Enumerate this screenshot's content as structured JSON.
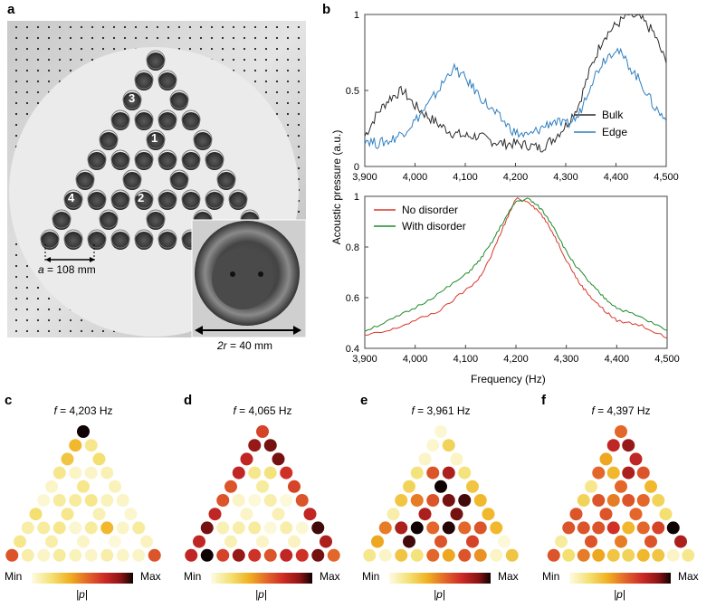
{
  "panels": {
    "a": "a",
    "b": "b",
    "c": "c",
    "d": "d",
    "e": "e",
    "f": "f"
  },
  "photo": {
    "site_labels": [
      "1",
      "2",
      "3",
      "4"
    ],
    "lattice_label_var": "a",
    "lattice_label_val": " = 108 mm",
    "radius_label_var": "2r",
    "radius_label_val": " = 40 mm"
  },
  "shared_ylabel": "Acoustic pressure (a.u.)",
  "shared_xlabel": "Frequency (Hz)",
  "chart_data": [
    {
      "type": "line",
      "xlim": [
        3900,
        4500
      ],
      "ylim": [
        0,
        1
      ],
      "xticks": [
        "3,900",
        "4,000",
        "4,100",
        "4,200",
        "4,300",
        "4,400",
        "4,500"
      ],
      "xtick_values": [
        3900,
        4000,
        4100,
        4200,
        4300,
        4400,
        4500
      ],
      "yticks": [
        "0",
        "0.5",
        "1"
      ],
      "ytick_values": [
        0,
        0.5,
        1
      ],
      "legend": "right",
      "x": [
        3900,
        3925,
        3950,
        3975,
        4000,
        4025,
        4050,
        4075,
        4100,
        4125,
        4150,
        4175,
        4200,
        4225,
        4250,
        4275,
        4300,
        4325,
        4350,
        4375,
        4400,
        4425,
        4450,
        4475,
        4500
      ],
      "series": [
        {
          "name": "Bulk",
          "color": "#2b2b2b",
          "values": [
            0.2,
            0.35,
            0.45,
            0.5,
            0.4,
            0.33,
            0.27,
            0.22,
            0.2,
            0.2,
            0.17,
            0.15,
            0.15,
            0.14,
            0.12,
            0.18,
            0.27,
            0.4,
            0.65,
            0.85,
            0.93,
            1.0,
            0.97,
            0.88,
            0.68
          ]
        },
        {
          "name": "Edge",
          "color": "#2f7fc0",
          "values": [
            0.18,
            0.15,
            0.17,
            0.22,
            0.3,
            0.4,
            0.52,
            0.65,
            0.58,
            0.48,
            0.38,
            0.3,
            0.22,
            0.2,
            0.25,
            0.3,
            0.27,
            0.33,
            0.55,
            0.7,
            0.78,
            0.67,
            0.55,
            0.4,
            0.3
          ]
        }
      ]
    },
    {
      "type": "line",
      "xlim": [
        3900,
        4500
      ],
      "ylim": [
        0.4,
        1
      ],
      "xticks": [
        "3,900",
        "4,000",
        "4,100",
        "4,200",
        "4,300",
        "4,400",
        "4,500"
      ],
      "xtick_values": [
        3900,
        4000,
        4100,
        4200,
        4300,
        4400,
        4500
      ],
      "yticks": [
        "0.4",
        "0.6",
        "0.8",
        "1"
      ],
      "ytick_values": [
        0.4,
        0.6,
        0.8,
        1
      ],
      "legend": "top-left",
      "x": [
        3900,
        3950,
        4000,
        4050,
        4100,
        4125,
        4150,
        4175,
        4200,
        4225,
        4250,
        4275,
        4300,
        4325,
        4350,
        4375,
        4400,
        4450,
        4500
      ],
      "series": [
        {
          "name": "No disorder",
          "color": "#d8372c",
          "values": [
            0.45,
            0.47,
            0.51,
            0.55,
            0.63,
            0.67,
            0.76,
            0.88,
            0.99,
            0.98,
            0.93,
            0.85,
            0.75,
            0.66,
            0.6,
            0.55,
            0.51,
            0.49,
            0.44
          ]
        },
        {
          "name": "With disorder",
          "color": "#1f8a2a",
          "values": [
            0.47,
            0.51,
            0.56,
            0.62,
            0.69,
            0.74,
            0.81,
            0.9,
            0.98,
            0.99,
            0.95,
            0.88,
            0.78,
            0.71,
            0.65,
            0.6,
            0.56,
            0.52,
            0.47
          ]
        }
      ]
    }
  ],
  "maps": [
    {
      "f_var": "f",
      "f_val": " = 4,203 Hz",
      "min": "Min",
      "max": "Max",
      "cblabel": "|p|",
      "values": [
        1.0,
        0.35,
        0.15,
        0.3,
        0.2,
        0.15,
        0.05,
        0.05,
        0.08,
        0.05,
        0.15,
        0.07,
        0.03,
        0.12,
        0.12,
        0.15,
        0.07,
        0.05,
        0.2,
        0.15,
        0.08,
        0.04,
        0.1,
        0.12,
        0.15,
        0.04,
        0.12,
        0.35,
        0.05,
        0.12,
        0.15,
        0.1,
        0.05,
        0.02,
        0.06,
        0.6,
        0.1,
        0.05,
        0.12,
        0.07,
        0.05,
        0.1,
        0.05,
        0.05,
        0.6
      ]
    },
    {
      "f_var": "f",
      "f_val": " = 4,065 Hz",
      "min": "Min",
      "max": "Max",
      "cblabel": "|p|",
      "values": [
        0.65,
        0.85,
        0.9,
        0.75,
        0.9,
        0.75,
        0.15,
        0.18,
        0.7,
        0.6,
        0.12,
        0.65,
        0.6,
        0.05,
        0.02,
        0.1,
        0.02,
        0.6,
        0.75,
        0.05,
        0.08,
        0.75,
        0.9,
        0.08,
        0.1,
        0.12,
        0.02,
        0.1,
        0.03,
        0.95,
        0.75,
        0.08,
        0.05,
        0.06,
        0.8,
        0.75,
        1.0,
        0.65,
        0.85,
        0.7,
        0.6,
        0.75,
        0.7,
        0.9,
        0.55
      ]
    },
    {
      "f_var": "f",
      "f_val": " = 3,961 Hz",
      "min": "Min",
      "max": "Max",
      "cblabel": "|p|",
      "values": [
        0.03,
        0.04,
        0.25,
        0.05,
        0.05,
        0.18,
        0.6,
        0.8,
        0.18,
        0.25,
        1.0,
        0.3,
        0.3,
        0.5,
        0.6,
        0.9,
        0.95,
        0.35,
        0.1,
        0.8,
        0.9,
        0.35,
        0.5,
        0.8,
        1.0,
        0.55,
        0.98,
        0.55,
        0.6,
        0.35,
        0.4,
        0.95,
        0.6,
        0.65,
        0.02,
        0.15,
        0.05,
        0.3,
        0.18,
        0.55,
        0.4,
        0.6,
        0.45,
        0.05,
        0.3
      ]
    },
    {
      "f_var": "f",
      "f_val": " = 4,397 Hz",
      "min": "Min",
      "max": "Max",
      "cblabel": "|p|",
      "values": [
        0.55,
        0.75,
        0.85,
        0.4,
        0.75,
        0.55,
        0.35,
        0.8,
        0.6,
        0.15,
        0.55,
        0.35,
        0.25,
        0.6,
        0.5,
        0.6,
        0.55,
        0.25,
        0.6,
        0.6,
        0.55,
        0.2,
        0.6,
        0.6,
        0.6,
        0.7,
        0.35,
        0.55,
        0.65,
        1.0,
        0.12,
        0.6,
        0.5,
        0.6,
        0.8,
        0.6,
        0.2,
        0.5,
        0.4,
        0.3,
        0.25,
        0.35,
        0.3,
        0.05,
        0.15
      ]
    }
  ]
}
